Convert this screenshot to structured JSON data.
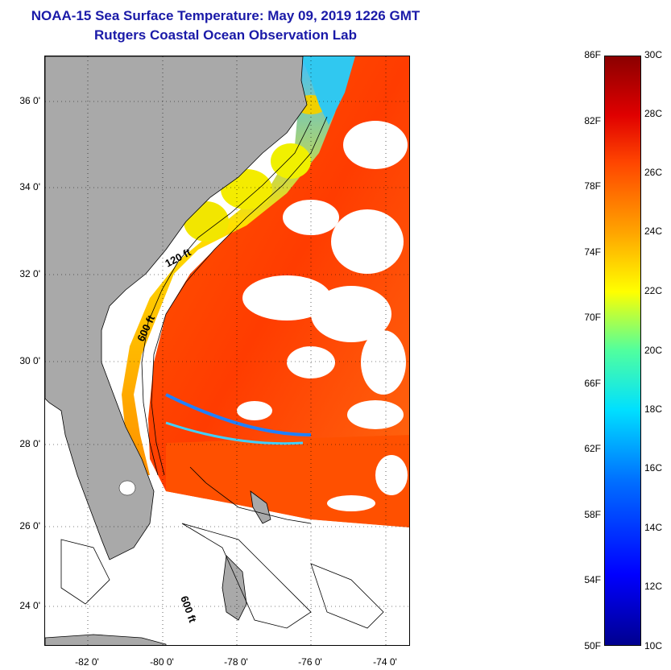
{
  "header": {
    "line1": "NOAA-15 Sea Surface Temperature:  May 09, 2019 1226 GMT",
    "line2": "Rutgers Coastal Ocean Observation Lab"
  },
  "map": {
    "lat_labels": [
      "36 0'",
      "34 0'",
      "32 0'",
      "30 0'",
      "28 0'",
      "26 0'",
      "24 0'"
    ],
    "lon_labels": [
      "-82 0'",
      "-80 0'",
      "-78 0'",
      "-76 0'",
      "-74 0'"
    ],
    "contours": {
      "c120": "120 ft",
      "c600a": "600 ft",
      "c600b": "600 ft"
    }
  },
  "colorbar": {
    "fahrenheit": [
      "86F",
      "82F",
      "78F",
      "74F",
      "70F",
      "66F",
      "62F",
      "58F",
      "54F",
      "50F"
    ],
    "celsius": [
      "30C",
      "28C",
      "26C",
      "24C",
      "22C",
      "20C",
      "18C",
      "16C",
      "14C",
      "12C",
      "10C"
    ]
  },
  "colors": {
    "title": "#1a1aa8",
    "land": "#a9a9a9",
    "warm": "#ff4a00",
    "cool": "#f5f000"
  }
}
